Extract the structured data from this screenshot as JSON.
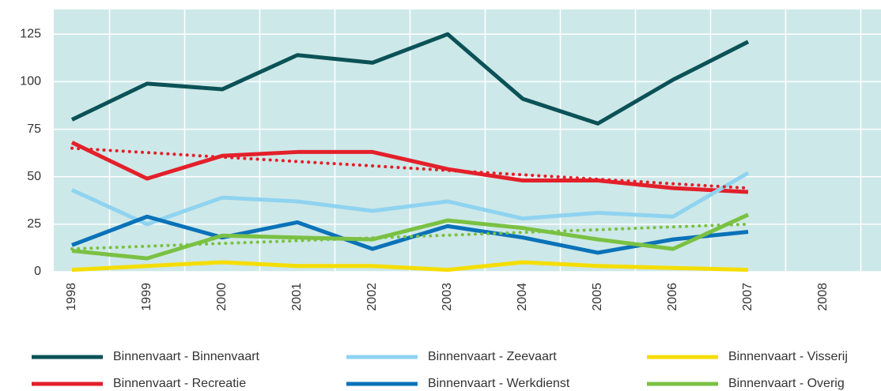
{
  "chart_data": {
    "type": "line",
    "categories": [
      "1998",
      "1999",
      "2000",
      "2001",
      "2002",
      "2003",
      "2004",
      "2005",
      "2006",
      "2007",
      "2008"
    ],
    "series": [
      {
        "name": "Binnenvaart - Binnenvaart",
        "color": "#0b5257",
        "values": [
          80,
          99,
          96,
          114,
          110,
          125,
          91,
          78,
          101,
          121,
          null
        ]
      },
      {
        "name": "Binnenvaart - Recreatie",
        "color": "#e3202a",
        "values": [
          68,
          49,
          61,
          63,
          63,
          54,
          48,
          48,
          44,
          42,
          null
        ]
      },
      {
        "name": "Binnenvaart - Zeevaart",
        "color": "#8fd3f0",
        "values": [
          43,
          25,
          39,
          37,
          32,
          37,
          28,
          31,
          29,
          52,
          null
        ]
      },
      {
        "name": "Binnenvaart - Werkdienst",
        "color": "#0a72b8",
        "values": [
          14,
          29,
          18,
          26,
          12,
          24,
          18,
          10,
          17,
          21,
          null
        ]
      },
      {
        "name": "Binnenvaart - Visserij",
        "color": "#f5dd00",
        "values": [
          1,
          3,
          5,
          3,
          3,
          1,
          5,
          3,
          2,
          1,
          null
        ]
      },
      {
        "name": "Binnenvaart - Overig",
        "color": "#7ac143",
        "values": [
          11,
          7,
          19,
          18,
          17,
          27,
          23,
          17,
          12,
          30,
          null
        ]
      }
    ],
    "trendlines": [
      {
        "color": "#e3202a",
        "values": [
          65,
          62.7,
          60.3,
          58,
          55.7,
          53.3,
          51,
          48.7,
          46.3,
          44,
          null
        ]
      },
      {
        "color": "#7ac143",
        "values": [
          12,
          13.4,
          14.9,
          16.3,
          17.8,
          19.2,
          20.7,
          22.1,
          23.6,
          25,
          null
        ]
      }
    ],
    "ylim": [
      0,
      138
    ],
    "yticks": [
      0,
      25,
      50,
      75,
      100,
      125
    ],
    "grid": true,
    "background": "#cde8e8"
  }
}
